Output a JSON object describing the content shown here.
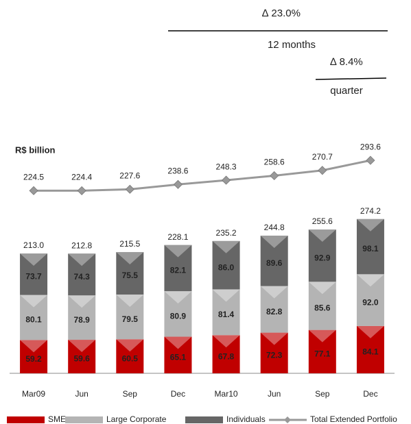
{
  "chart_data": {
    "type": "bar",
    "stacked": true,
    "unit_label": "R$ billion",
    "annotations": [
      "∆ 23.0%",
      "12 months",
      "∆ 8.4%",
      "quarter"
    ],
    "categories": [
      "Mar09",
      "Jun",
      "Sep",
      "Dec",
      "Mar10",
      "Jun",
      "Sep",
      "Dec"
    ],
    "ylim": [
      0,
      420
    ],
    "y2lim": [
      200,
      300
    ],
    "series": [
      {
        "name": "SMEs",
        "color": "#c00000",
        "label_color": "#ffffff",
        "values": [
          59.2,
          59.6,
          60.5,
          65.1,
          67.8,
          72.3,
          77.1,
          84.1
        ]
      },
      {
        "name": "Large Corporate",
        "color": "#b4b4b4",
        "label_color": "#222222",
        "values": [
          80.1,
          78.9,
          79.5,
          80.9,
          81.4,
          82.8,
          85.6,
          92.0
        ],
        "value_labels": [
          "80.1",
          "78.9",
          "79.5",
          "80.9",
          "81.4",
          "82.8",
          "85.6",
          "92.0"
        ]
      },
      {
        "name": "Individuals",
        "color": "#666666",
        "label_color": "#ffffff",
        "values": [
          73.7,
          74.3,
          75.5,
          82.1,
          86.0,
          89.6,
          92.9,
          98.1
        ],
        "value_labels": [
          "73.7",
          "74.3",
          "75.5",
          "82.1",
          "86.0",
          "89.6",
          "92.9",
          "98.1"
        ]
      },
      {
        "name": "Total Extended Portfolio",
        "type": "line",
        "axis": "y2",
        "color": "#999999",
        "values": [
          224.5,
          224.4,
          227.6,
          238.6,
          248.3,
          258.6,
          270.7,
          293.6
        ]
      }
    ],
    "stack_totals": {
      "values": [
        213.0,
        212.8,
        215.5,
        228.1,
        235.2,
        244.8,
        255.6,
        274.2
      ],
      "value_labels": [
        "213.0",
        "212.8",
        "215.5",
        "228.1",
        "235.2",
        "244.8",
        "255.6",
        "274.2"
      ]
    }
  }
}
